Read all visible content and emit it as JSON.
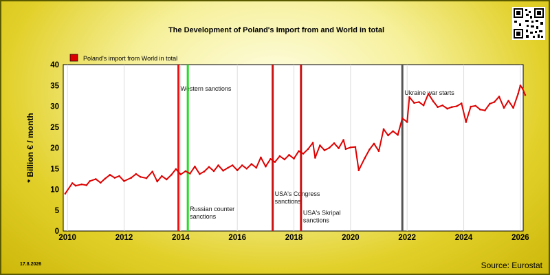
{
  "chart_data": {
    "type": "line",
    "title": "The Development of Poland's Import from   and World in total",
    "xlabel": "",
    "ylabel": "* Billion € / month",
    "xlim": [
      2009.85,
      2026.1
    ],
    "ylim": [
      0,
      40
    ],
    "x_ticks": [
      2010,
      2012,
      2014,
      2016,
      2018,
      2020,
      2022,
      2024,
      2026
    ],
    "y_ticks": [
      0,
      5,
      10,
      15,
      20,
      25,
      30,
      35,
      40
    ],
    "grid": "vertical",
    "legend_position": "top-left",
    "series": [
      {
        "name": "Poland's import from World in total",
        "color": "#dd0000",
        "points": [
          [
            2009.92,
            9.0
          ],
          [
            2010.17,
            11.5
          ],
          [
            2010.29,
            10.9
          ],
          [
            2010.5,
            11.2
          ],
          [
            2010.67,
            11.0
          ],
          [
            2010.79,
            12.0
          ],
          [
            2011.0,
            12.5
          ],
          [
            2011.17,
            11.6
          ],
          [
            2011.33,
            12.6
          ],
          [
            2011.5,
            13.5
          ],
          [
            2011.67,
            12.8
          ],
          [
            2011.83,
            13.2
          ],
          [
            2012.0,
            12.0
          ],
          [
            2012.25,
            12.8
          ],
          [
            2012.42,
            13.7
          ],
          [
            2012.58,
            13.0
          ],
          [
            2012.79,
            12.7
          ],
          [
            2013.0,
            14.3
          ],
          [
            2013.17,
            11.9
          ],
          [
            2013.33,
            13.2
          ],
          [
            2013.5,
            12.4
          ],
          [
            2013.67,
            13.5
          ],
          [
            2013.83,
            14.9
          ],
          [
            2014.0,
            13.6
          ],
          [
            2014.17,
            14.4
          ],
          [
            2014.33,
            13.8
          ],
          [
            2014.5,
            15.5
          ],
          [
            2014.67,
            13.7
          ],
          [
            2014.83,
            14.3
          ],
          [
            2015.0,
            15.4
          ],
          [
            2015.17,
            14.4
          ],
          [
            2015.33,
            15.8
          ],
          [
            2015.5,
            14.5
          ],
          [
            2015.67,
            15.2
          ],
          [
            2015.83,
            15.8
          ],
          [
            2016.0,
            14.6
          ],
          [
            2016.17,
            15.8
          ],
          [
            2016.33,
            15.0
          ],
          [
            2016.5,
            16.1
          ],
          [
            2016.67,
            15.2
          ],
          [
            2016.83,
            17.7
          ],
          [
            2017.0,
            15.5
          ],
          [
            2017.17,
            17.3
          ],
          [
            2017.33,
            16.6
          ],
          [
            2017.5,
            18.0
          ],
          [
            2017.67,
            17.2
          ],
          [
            2017.83,
            18.3
          ],
          [
            2018.0,
            17.4
          ],
          [
            2018.17,
            19.2
          ],
          [
            2018.33,
            18.6
          ],
          [
            2018.5,
            19.7
          ],
          [
            2018.67,
            21.2
          ],
          [
            2018.75,
            17.6
          ],
          [
            2018.92,
            20.6
          ],
          [
            2019.08,
            19.4
          ],
          [
            2019.25,
            20.0
          ],
          [
            2019.42,
            21.1
          ],
          [
            2019.58,
            19.9
          ],
          [
            2019.75,
            21.9
          ],
          [
            2019.83,
            19.7
          ],
          [
            2020.0,
            20.1
          ],
          [
            2020.17,
            20.2
          ],
          [
            2020.29,
            14.6
          ],
          [
            2020.5,
            17.5
          ],
          [
            2020.67,
            19.6
          ],
          [
            2020.83,
            21.0
          ],
          [
            2021.0,
            19.2
          ],
          [
            2021.17,
            24.5
          ],
          [
            2021.33,
            23.0
          ],
          [
            2021.5,
            24.0
          ],
          [
            2021.67,
            23.1
          ],
          [
            2021.83,
            27.1
          ],
          [
            2022.0,
            26.2
          ],
          [
            2022.08,
            32.2
          ],
          [
            2022.25,
            30.8
          ],
          [
            2022.42,
            31.0
          ],
          [
            2022.58,
            30.2
          ],
          [
            2022.75,
            33.0
          ],
          [
            2022.92,
            31.2
          ],
          [
            2023.08,
            29.8
          ],
          [
            2023.25,
            30.2
          ],
          [
            2023.42,
            29.4
          ],
          [
            2023.58,
            29.8
          ],
          [
            2023.75,
            30.0
          ],
          [
            2023.92,
            30.7
          ],
          [
            2024.08,
            26.2
          ],
          [
            2024.25,
            29.9
          ],
          [
            2024.42,
            30.1
          ],
          [
            2024.58,
            29.2
          ],
          [
            2024.75,
            29.0
          ],
          [
            2024.92,
            30.6
          ],
          [
            2025.08,
            31.0
          ],
          [
            2025.25,
            32.3
          ],
          [
            2025.42,
            29.6
          ],
          [
            2025.58,
            31.3
          ],
          [
            2025.75,
            29.6
          ],
          [
            2025.92,
            33.0
          ],
          [
            2026.0,
            35.0
          ],
          [
            2026.08,
            34.2
          ],
          [
            2026.17,
            32.7
          ]
        ]
      }
    ],
    "events": [
      {
        "x": 2013.92,
        "color": "#ee1111",
        "label": [
          "Western sanctions"
        ],
        "label_value_y": 33.7
      },
      {
        "x": 2014.25,
        "color": "#22dd22",
        "label": [
          "Russian counter",
          "sanctions"
        ],
        "label_value_y": 4.8
      },
      {
        "x": 2017.25,
        "color": "#cc1111",
        "label": [
          "USA's Congress",
          "sanctions"
        ],
        "label_value_y": 8.4
      },
      {
        "x": 2018.25,
        "color": "#cc1111",
        "label": [
          "USA's Skripal",
          "sanctions"
        ],
        "label_value_y": 3.9
      },
      {
        "x": 2021.83,
        "color": "#555555",
        "label": [
          "Ukraine war starts"
        ],
        "label_value_y": 32.7
      }
    ]
  },
  "date_stamp": "17.8.2026",
  "source": "Source: Eurostat",
  "qr_icon": "qr-code-icon"
}
